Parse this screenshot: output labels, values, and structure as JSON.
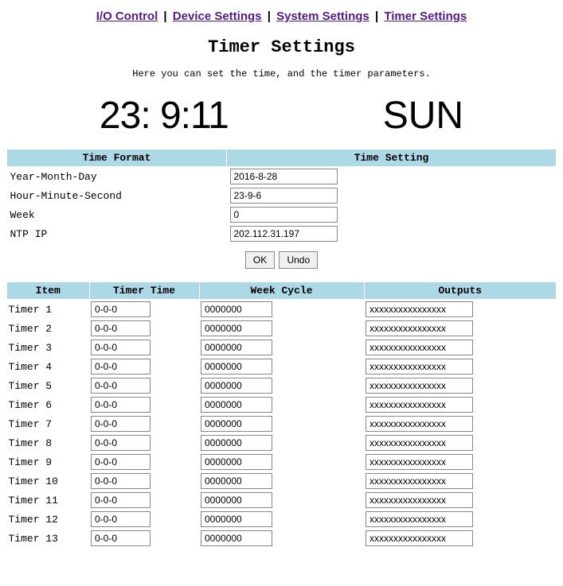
{
  "nav": {
    "links": [
      "I/O Control",
      "Device Settings",
      "System Settings",
      "Timer Settings"
    ],
    "separator": "|"
  },
  "page": {
    "title": "Timer Settings",
    "subtitle": "Here you can set the time, and the timer parameters."
  },
  "clock": {
    "time": "23: 9:11",
    "dow": "SUN"
  },
  "settings_table": {
    "headers": [
      "Time Format",
      "Time Setting"
    ],
    "rows": [
      {
        "label": "Year-Month-Day",
        "value": "2016-8-28"
      },
      {
        "label": "Hour-Minute-Second",
        "value": "23-9-6"
      },
      {
        "label": "Week",
        "value": "0"
      },
      {
        "label": "NTP IP",
        "value": "202.112.31.197"
      }
    ]
  },
  "buttons": {
    "ok": "OK",
    "undo": "Undo"
  },
  "timers_table": {
    "headers": [
      "Item",
      "Timer Time",
      "Week Cycle",
      "Outputs"
    ],
    "rows": [
      {
        "item": "Timer 1",
        "time": "0-0-0",
        "week": "0000000",
        "out": "xxxxxxxxxxxxxxxx"
      },
      {
        "item": "Timer 2",
        "time": "0-0-0",
        "week": "0000000",
        "out": "xxxxxxxxxxxxxxxx"
      },
      {
        "item": "Timer 3",
        "time": "0-0-0",
        "week": "0000000",
        "out": "xxxxxxxxxxxxxxxx"
      },
      {
        "item": "Timer 4",
        "time": "0-0-0",
        "week": "0000000",
        "out": "xxxxxxxxxxxxxxxx"
      },
      {
        "item": "Timer 5",
        "time": "0-0-0",
        "week": "0000000",
        "out": "xxxxxxxxxxxxxxxx"
      },
      {
        "item": "Timer 6",
        "time": "0-0-0",
        "week": "0000000",
        "out": "xxxxxxxxxxxxxxxx"
      },
      {
        "item": "Timer 7",
        "time": "0-0-0",
        "week": "0000000",
        "out": "xxxxxxxxxxxxxxxx"
      },
      {
        "item": "Timer 8",
        "time": "0-0-0",
        "week": "0000000",
        "out": "xxxxxxxxxxxxxxxx"
      },
      {
        "item": "Timer 9",
        "time": "0-0-0",
        "week": "0000000",
        "out": "xxxxxxxxxxxxxxxx"
      },
      {
        "item": "Timer 10",
        "time": "0-0-0",
        "week": "0000000",
        "out": "xxxxxxxxxxxxxxxx"
      },
      {
        "item": "Timer 11",
        "time": "0-0-0",
        "week": "0000000",
        "out": "xxxxxxxxxxxxxxxx"
      },
      {
        "item": "Timer 12",
        "time": "0-0-0",
        "week": "0000000",
        "out": "xxxxxxxxxxxxxxxx"
      },
      {
        "item": "Timer 13",
        "time": "0-0-0",
        "week": "0000000",
        "out": "xxxxxxxxxxxxxxxx"
      }
    ]
  },
  "colors": {
    "header_bg": "#add8e6",
    "link": "#551a8b",
    "page_bg": "#ffffff"
  }
}
